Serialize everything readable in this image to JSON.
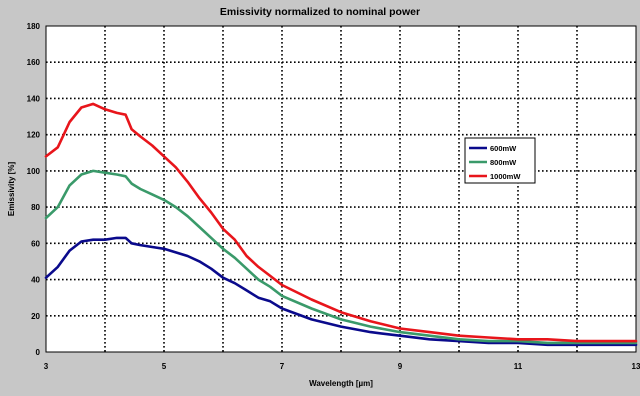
{
  "chart_data": {
    "type": "line",
    "title": "Emissivity normalized to nominal power",
    "xlabel": "Wavelength [µm]",
    "ylabel": "Emissivity [%]",
    "xlim": [
      3,
      13
    ],
    "ylim": [
      0,
      180
    ],
    "x_ticks": [
      3,
      5,
      7,
      9,
      11,
      13
    ],
    "y_ticks": [
      0,
      20,
      40,
      60,
      80,
      100,
      120,
      140,
      160,
      180
    ],
    "grid": true,
    "legend_position": "right",
    "background_color": "#c7c7c7",
    "plot_background_color": "#ffffff",
    "series": [
      {
        "name": "600mW",
        "color": "#0a0a8c",
        "x": [
          3,
          3.2,
          3.4,
          3.6,
          3.8,
          4.0,
          4.2,
          4.35,
          4.45,
          4.6,
          4.8,
          5.0,
          5.2,
          5.4,
          5.6,
          5.8,
          6.0,
          6.2,
          6.4,
          6.6,
          6.8,
          7.0,
          7.5,
          8.0,
          8.5,
          9.0,
          9.5,
          10.0,
          10.5,
          11.0,
          11.5,
          12.0,
          12.5,
          13.0
        ],
        "y": [
          41,
          47,
          56,
          61,
          62,
          62,
          63,
          63,
          60,
          59,
          58,
          57,
          55,
          53,
          50,
          46,
          41,
          38,
          34,
          30,
          28,
          24,
          18,
          14,
          11,
          9,
          7,
          6,
          5,
          5,
          4,
          4,
          4,
          4
        ]
      },
      {
        "name": "800mW",
        "color": "#3a9a6a",
        "x": [
          3,
          3.2,
          3.4,
          3.6,
          3.8,
          4.0,
          4.2,
          4.35,
          4.45,
          4.6,
          4.8,
          5.0,
          5.2,
          5.4,
          5.6,
          5.8,
          6.0,
          6.2,
          6.4,
          6.6,
          6.8,
          7.0,
          7.5,
          8.0,
          8.5,
          9.0,
          9.5,
          10.0,
          10.5,
          11.0,
          11.5,
          12.0,
          12.5,
          13.0
        ],
        "y": [
          74,
          80,
          92,
          98,
          100,
          99,
          98,
          97,
          93,
          90,
          87,
          84,
          80,
          75,
          69,
          63,
          57,
          52,
          46,
          40,
          36,
          31,
          24,
          18,
          14,
          11,
          9,
          7,
          6,
          6,
          5,
          5,
          5,
          5
        ]
      },
      {
        "name": "1000mW",
        "color": "#e8151b",
        "x": [
          3,
          3.2,
          3.4,
          3.6,
          3.8,
          4.0,
          4.2,
          4.35,
          4.45,
          4.6,
          4.8,
          5.0,
          5.2,
          5.4,
          5.6,
          5.8,
          6.0,
          6.2,
          6.4,
          6.6,
          6.8,
          7.0,
          7.5,
          8.0,
          8.5,
          9.0,
          9.5,
          10.0,
          10.5,
          11.0,
          11.5,
          12.0,
          12.5,
          13.0
        ],
        "y": [
          108,
          113,
          127,
          135,
          137,
          134,
          132,
          131,
          123,
          119,
          114,
          108,
          102,
          94,
          85,
          77,
          68,
          62,
          53,
          47,
          42,
          37,
          29,
          22,
          17,
          13,
          11,
          9,
          8,
          7,
          7,
          6,
          6,
          6
        ]
      }
    ]
  }
}
